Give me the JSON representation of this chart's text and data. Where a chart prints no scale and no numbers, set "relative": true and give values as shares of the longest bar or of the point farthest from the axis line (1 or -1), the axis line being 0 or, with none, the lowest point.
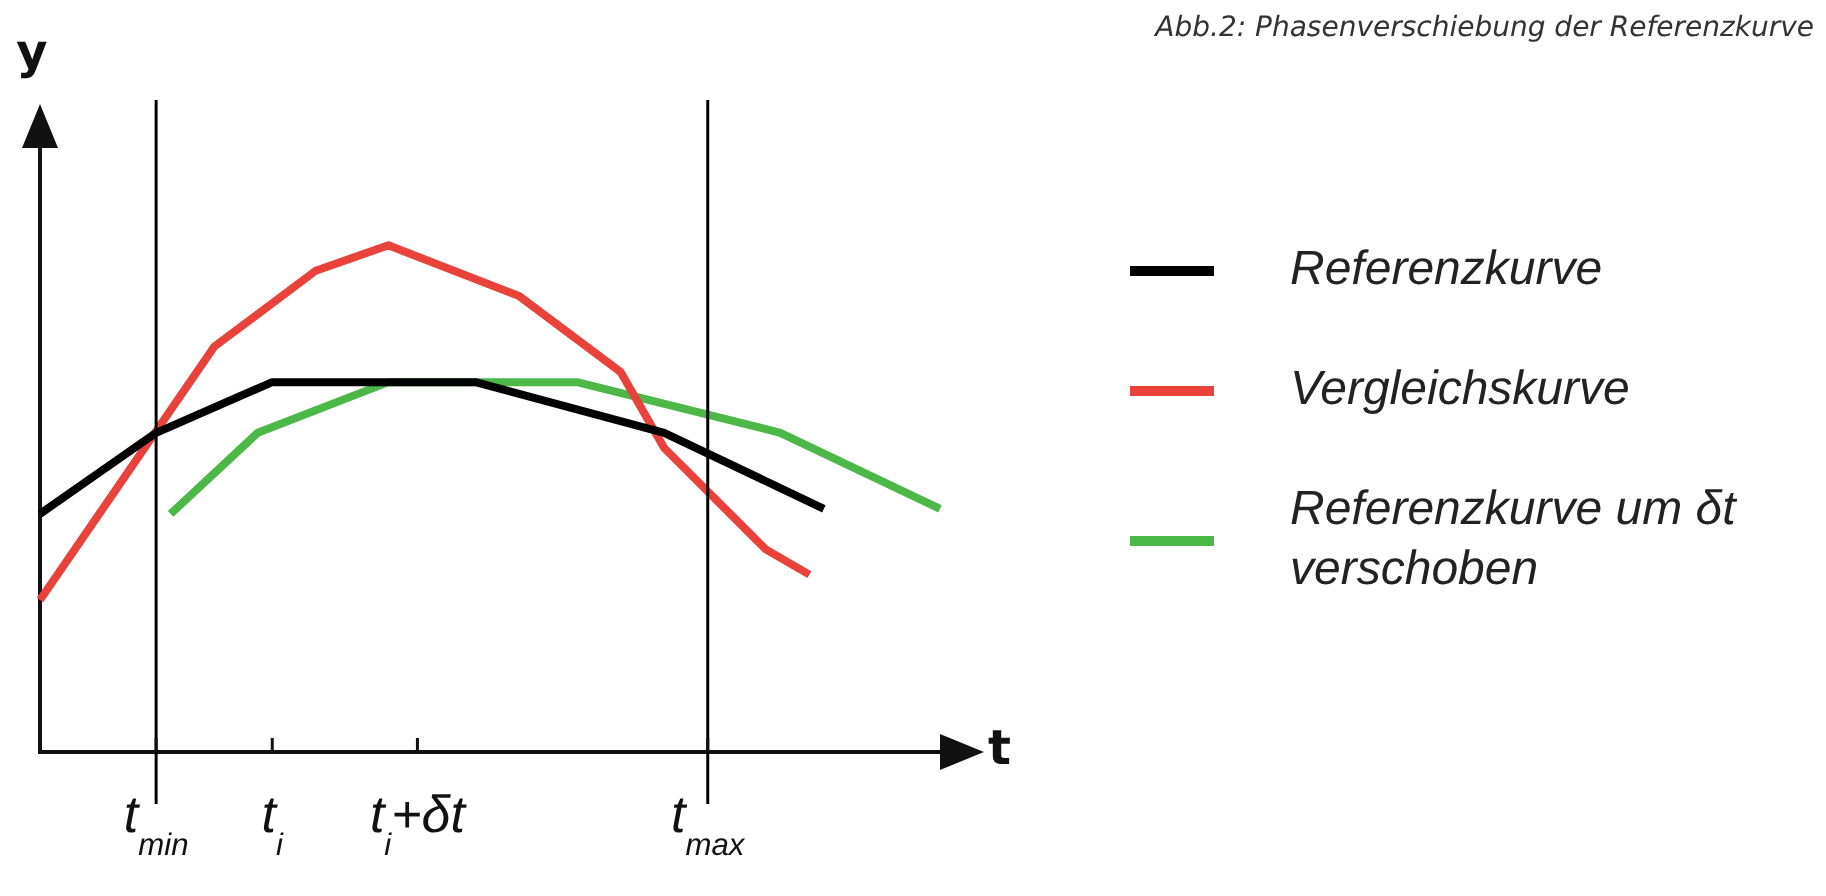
{
  "chart_data": {
    "type": "line",
    "relative": true,
    "title": "Abb.2: Phasenverschiebung der Referenzkurve",
    "xlabel": "t",
    "ylabel": "y",
    "categories": [
      null,
      null,
      null,
      null,
      null,
      null,
      null,
      null,
      "t$_{min}$",
      null,
      null,
      null,
      null,
      null,
      null,
      null,
      "t$_{i}$",
      null,
      null,
      null,
      null,
      null,
      null,
      null,
      null,
      null,
      "t$_{i}$+δt",
      null,
      null,
      null,
      null,
      null,
      null,
      null,
      null,
      null,
      null,
      null,
      null,
      null,
      null,
      null,
      null,
      null,
      null,
      null,
      "t$_{max}$",
      null,
      null,
      null,
      null,
      null,
      null,
      null,
      null,
      null,
      null,
      null,
      null,
      null,
      null,
      null,
      null
    ],
    "series": [
      {
        "name": "Referenzkurve",
        "color": "#000000",
        "values": [
          0.47,
          null,
          null,
          null,
          null,
          null,
          null,
          null,
          0.63,
          null,
          null,
          null,
          null,
          null,
          null,
          null,
          0.73,
          null,
          null,
          null,
          null,
          null,
          null,
          null,
          null,
          null,
          null,
          null,
          null,
          null,
          0.73,
          null,
          null,
          null,
          null,
          null,
          null,
          null,
          null,
          null,
          null,
          null,
          null,
          0.63,
          null,
          null,
          null,
          null,
          null,
          null,
          null,
          null,
          null,
          null,
          0.48,
          null,
          null,
          null,
          null,
          null,
          null,
          null,
          null
        ]
      },
      {
        "name": "Vergleichskurve",
        "color": "#e8423a",
        "values": [
          0.3,
          null,
          null,
          null,
          null,
          null,
          null,
          null,
          null,
          null,
          null,
          null,
          0.8,
          null,
          null,
          null,
          null,
          null,
          null,
          0.95,
          null,
          null,
          null,
          null,
          1,
          null,
          null,
          null,
          null,
          null,
          null,
          null,
          null,
          0.9,
          null,
          null,
          null,
          null,
          null,
          null,
          0.75,
          null,
          null,
          0.6,
          null,
          null,
          null,
          null,
          null,
          null,
          0.4,
          null,
          null,
          0.35,
          null,
          null,
          null,
          null,
          null,
          null,
          null,
          null,
          null
        ]
      },
      {
        "name": "Referenzkurve um δt verschoben",
        "color": "#4cb848",
        "values": [
          null,
          null,
          null,
          null,
          null,
          null,
          null,
          null,
          null,
          0.47,
          null,
          null,
          null,
          null,
          null,
          0.63,
          null,
          null,
          null,
          null,
          null,
          null,
          null,
          null,
          0.73,
          null,
          null,
          null,
          null,
          null,
          null,
          null,
          null,
          null,
          null,
          null,
          null,
          0.73,
          null,
          null,
          null,
          null,
          null,
          null,
          null,
          null,
          null,
          null,
          null,
          null,
          null,
          0.63,
          null,
          null,
          null,
          null,
          null,
          null,
          null,
          null,
          null,
          null,
          0.48
        ]
      }
    ],
    "ref_lines": [
      {
        "axis": "x",
        "value": "t$_{min}$",
        "color": "#000000"
      },
      {
        "axis": "x",
        "value": "t$_{max}$",
        "color": "#000000"
      }
    ],
    "legend": "right"
  }
}
